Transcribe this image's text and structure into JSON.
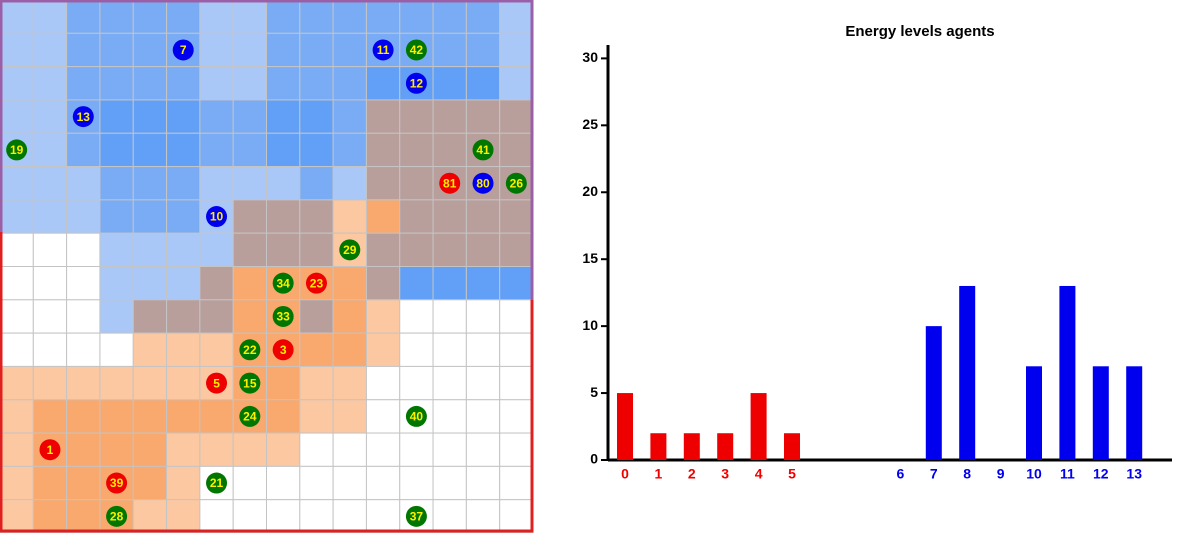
{
  "grid": {
    "agents": [
      {
        "label": "7",
        "team": "#0000ee"
      },
      {
        "label": "11",
        "team": "#0000ee"
      },
      {
        "label": "42",
        "team": "#007700"
      },
      {
        "label": "12",
        "team": "#0000ee"
      },
      {
        "label": "13",
        "team": "#0000ee"
      },
      {
        "label": "19",
        "team": "#007700"
      },
      {
        "label": "41",
        "team": "#007700"
      },
      {
        "label": "81",
        "team": "#ee0000"
      },
      {
        "label": "80",
        "team": "#0000ee"
      },
      {
        "label": "26",
        "team": "#007700"
      },
      {
        "label": "10",
        "team": "#0000ee"
      },
      {
        "label": "29",
        "team": "#007700"
      },
      {
        "label": "34",
        "team": "#007700"
      },
      {
        "label": "23",
        "team": "#ee0000"
      },
      {
        "label": "33",
        "team": "#007700"
      },
      {
        "label": "22",
        "team": "#007700"
      },
      {
        "label": "3",
        "team": "#ee0000"
      },
      {
        "label": "5",
        "team": "#ee0000"
      },
      {
        "label": "15",
        "team": "#007700"
      },
      {
        "label": "24",
        "team": "#007700"
      },
      {
        "label": "40",
        "team": "#007700"
      },
      {
        "label": "1",
        "team": "#ee0000"
      },
      {
        "label": "39",
        "team": "#ee0000"
      },
      {
        "label": "21",
        "team": "#007700"
      },
      {
        "label": "28",
        "team": "#007700"
      },
      {
        "label": "37",
        "team": "#007700"
      }
    ]
  },
  "chart_data": {
    "type": "bar",
    "title": "Energy levels agents",
    "categories": [
      "0",
      "1",
      "2",
      "3",
      "4",
      "5",
      "6",
      "7",
      "8",
      "9",
      "10",
      "11",
      "12",
      "13"
    ],
    "values": [
      5,
      2,
      2,
      2,
      5,
      2,
      0,
      10,
      13,
      0,
      7,
      13,
      7,
      7
    ],
    "colors": [
      "#ee0000",
      "#ee0000",
      "#ee0000",
      "#ee0000",
      "#ee0000",
      "#ee0000",
      "#0000ee",
      "#0000ee",
      "#0000ee",
      "#0000ee",
      "#0000ee",
      "#0000ee",
      "#0000ee",
      "#0000ee"
    ],
    "ylim": [
      0,
      31
    ],
    "yticks": [
      0,
      5,
      10,
      15,
      20,
      25,
      30
    ],
    "grid": false
  }
}
